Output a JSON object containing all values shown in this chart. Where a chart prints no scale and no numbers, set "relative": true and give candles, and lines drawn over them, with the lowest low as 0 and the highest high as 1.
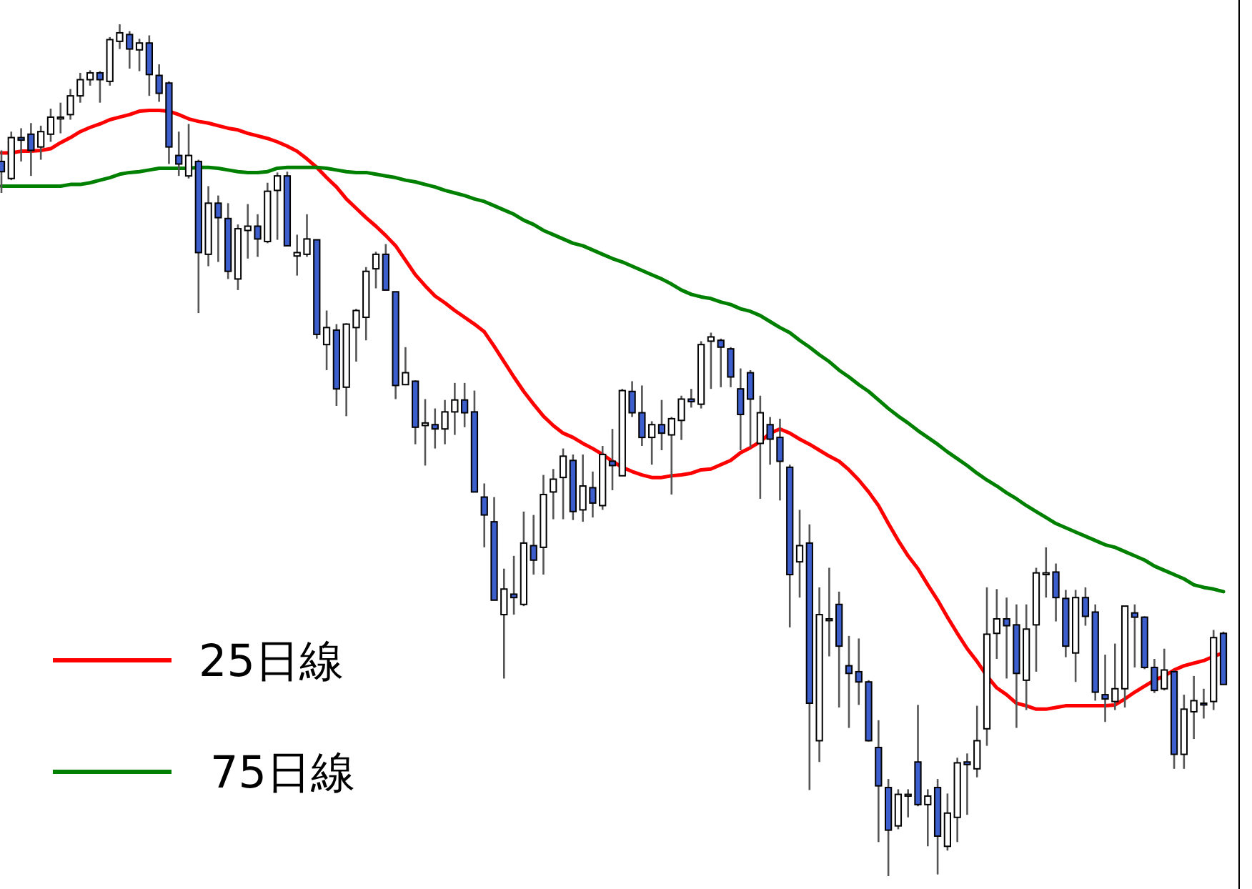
{
  "chart_data": {
    "type": "candlestick",
    "relative": true,
    "legend": "bottom left",
    "categories": [
      null,
      null,
      null,
      null,
      null,
      null,
      null,
      null,
      null,
      null,
      null,
      null,
      null,
      null,
      null,
      null,
      null,
      null,
      null,
      null,
      null,
      null,
      null,
      null,
      null,
      null,
      null,
      null,
      null,
      null,
      null,
      null,
      null,
      null,
      null,
      null,
      null,
      null,
      null,
      null,
      null,
      null,
      null,
      null,
      null,
      null,
      null,
      null,
      null,
      null,
      null,
      null,
      null,
      null,
      null,
      null,
      null,
      null,
      null,
      null,
      null,
      null,
      null,
      null,
      null,
      null,
      null,
      null,
      null,
      null,
      null,
      null,
      null,
      null,
      null,
      null,
      null,
      null,
      null,
      null,
      null,
      null,
      null,
      null,
      null,
      null,
      null,
      null,
      null,
      null,
      null,
      null,
      null,
      null,
      null,
      null,
      null,
      null,
      null,
      null,
      null,
      null,
      null,
      null,
      null,
      null,
      null,
      null,
      null,
      null,
      null,
      null,
      null,
      null,
      null,
      null,
      null,
      null,
      null,
      null,
      null,
      null,
      null,
      null,
      null
    ],
    "ohlc": [
      [
        0.839,
        0.852,
        0.802,
        0.827
      ],
      [
        0.819,
        0.874,
        0.817,
        0.867
      ],
      [
        0.867,
        0.878,
        0.839,
        0.864
      ],
      [
        0.871,
        0.884,
        0.822,
        0.852
      ],
      [
        0.856,
        0.881,
        0.841,
        0.874
      ],
      [
        0.871,
        0.901,
        0.862,
        0.891
      ],
      [
        0.889,
        0.908,
        0.872,
        0.891
      ],
      [
        0.894,
        0.924,
        0.888,
        0.916
      ],
      [
        0.916,
        0.943,
        0.908,
        0.935
      ],
      [
        0.935,
        0.946,
        0.928,
        0.943
      ],
      [
        0.943,
        0.945,
        0.908,
        0.935
      ],
      [
        0.933,
        0.985,
        0.928,
        0.982
      ],
      [
        0.98,
        1,
        0.971,
        0.99
      ],
      [
        0.988,
        0.992,
        0.948,
        0.971
      ],
      [
        0.97,
        0.983,
        0.945,
        0.978
      ],
      [
        0.978,
        0.987,
        0.916,
        0.941
      ],
      [
        0.94,
        0.953,
        0.909,
        0.919
      ],
      [
        0.931,
        0.933,
        0.836,
        0.856
      ],
      [
        0.846,
        0.874,
        0.822,
        0.836
      ],
      [
        0.822,
        0.883,
        0.819,
        0.846
      ],
      [
        0.839,
        0.841,
        0.661,
        0.732
      ],
      [
        0.73,
        0.81,
        0.716,
        0.79
      ],
      [
        0.79,
        0.799,
        0.721,
        0.773
      ],
      [
        0.772,
        0.79,
        0.701,
        0.71
      ],
      [
        0.701,
        0.765,
        0.688,
        0.76
      ],
      [
        0.758,
        0.789,
        0.725,
        0.763
      ],
      [
        0.763,
        0.777,
        0.727,
        0.748
      ],
      [
        0.745,
        0.814,
        0.743,
        0.804
      ],
      [
        0.805,
        0.826,
        0.747,
        0.822
      ],
      [
        0.822,
        0.827,
        0.74,
        0.74
      ],
      [
        0.728,
        0.753,
        0.705,
        0.732
      ],
      [
        0.73,
        0.777,
        0.727,
        0.748
      ],
      [
        0.747,
        0.747,
        0.631,
        0.636
      ],
      [
        0.624,
        0.664,
        0.594,
        0.644
      ],
      [
        0.641,
        0.648,
        0.552,
        0.572
      ],
      [
        0.574,
        0.649,
        0.54,
        0.648
      ],
      [
        0.644,
        0.666,
        0.604,
        0.664
      ],
      [
        0.656,
        0.715,
        0.629,
        0.71
      ],
      [
        0.713,
        0.733,
        0.69,
        0.73
      ],
      [
        0.73,
        0.742,
        0.688,
        0.688
      ],
      [
        0.686,
        0.686,
        0.56,
        0.576
      ],
      [
        0.577,
        0.621,
        0.577,
        0.591
      ],
      [
        0.581,
        0.582,
        0.507,
        0.527
      ],
      [
        0.529,
        0.56,
        0.482,
        0.532
      ],
      [
        0.53,
        0.549,
        0.502,
        0.525
      ],
      [
        0.525,
        0.559,
        0.507,
        0.545
      ],
      [
        0.545,
        0.579,
        0.518,
        0.559
      ],
      [
        0.559,
        0.579,
        0.527,
        0.544
      ],
      [
        0.545,
        0.57,
        0.451,
        0.451
      ],
      [
        0.445,
        0.461,
        0.386,
        0.424
      ],
      [
        0.416,
        0.445,
        0.324,
        0.324
      ],
      [
        0.307,
        0.361,
        0.232,
        0.337
      ],
      [
        0.331,
        0.376,
        0.307,
        0.327
      ],
      [
        0.319,
        0.428,
        0.317,
        0.391
      ],
      [
        0.388,
        0.424,
        0.354,
        0.371
      ],
      [
        0.386,
        0.471,
        0.354,
        0.448
      ],
      [
        0.451,
        0.478,
        0.419,
        0.466
      ],
      [
        0.468,
        0.502,
        0.419,
        0.493
      ],
      [
        0.488,
        0.495,
        0.418,
        0.428
      ],
      [
        0.43,
        0.495,
        0.416,
        0.458
      ],
      [
        0.456,
        0.475,
        0.421,
        0.438
      ],
      [
        0.435,
        0.505,
        0.43,
        0.495
      ],
      [
        0.487,
        0.525,
        0.453,
        0.482
      ],
      [
        0.47,
        0.572,
        0.47,
        0.57
      ],
      [
        0.569,
        0.581,
        0.539,
        0.544
      ],
      [
        0.544,
        0.576,
        0.505,
        0.515
      ],
      [
        0.515,
        0.534,
        0.483,
        0.53
      ],
      [
        0.53,
        0.559,
        0.5,
        0.52
      ],
      [
        0.518,
        0.539,
        0.448,
        0.537
      ],
      [
        0.535,
        0.564,
        0.512,
        0.56
      ],
      [
        0.56,
        0.572,
        0.55,
        0.557
      ],
      [
        0.554,
        0.628,
        0.549,
        0.624
      ],
      [
        0.628,
        0.638,
        0.572,
        0.633
      ],
      [
        0.629,
        0.631,
        0.574,
        0.621
      ],
      [
        0.619,
        0.621,
        0.574,
        0.586
      ],
      [
        0.572,
        0.596,
        0.5,
        0.542
      ],
      [
        0.591,
        0.594,
        0.503,
        0.56
      ],
      [
        0.508,
        0.564,
        0.443,
        0.544
      ],
      [
        0.53,
        0.539,
        0.483,
        0.513
      ],
      [
        0.515,
        0.537,
        0.441,
        0.487
      ],
      [
        0.48,
        0.483,
        0.292,
        0.354
      ],
      [
        0.369,
        0.43,
        0.327,
        0.388
      ],
      [
        0.391,
        0.413,
        0.101,
        0.203
      ],
      [
        0.159,
        0.339,
        0.134,
        0.307
      ],
      [
        0.3,
        0.362,
        0.258,
        0.302
      ],
      [
        0.319,
        0.334,
        0.198,
        0.27
      ],
      [
        0.247,
        0.282,
        0.174,
        0.238
      ],
      [
        0.24,
        0.279,
        0.201,
        0.228
      ],
      [
        0.228,
        0.23,
        0.158,
        0.159
      ],
      [
        0.151,
        0.183,
        0.04,
        0.106
      ],
      [
        0.104,
        0.114,
        0,
        0.054
      ],
      [
        0.059,
        0.102,
        0.055,
        0.096
      ],
      [
        0.094,
        0.102,
        0.069,
        0.096
      ],
      [
        0.134,
        0.201,
        0.082,
        0.084
      ],
      [
        0.084,
        0.102,
        0.035,
        0.094
      ],
      [
        0.104,
        0.114,
        0.002,
        0.047
      ],
      [
        0.035,
        0.097,
        0.03,
        0.074
      ],
      [
        0.069,
        0.139,
        0.04,
        0.133
      ],
      [
        0.134,
        0.144,
        0.072,
        0.131
      ],
      [
        0.126,
        0.2,
        0.116,
        0.159
      ],
      [
        0.173,
        0.339,
        0.153,
        0.284
      ],
      [
        0.285,
        0.337,
        0.255,
        0.302
      ],
      [
        0.302,
        0.327,
        0.232,
        0.294
      ],
      [
        0.295,
        0.319,
        0.174,
        0.238
      ],
      [
        0.23,
        0.319,
        0.195,
        0.29
      ],
      [
        0.295,
        0.362,
        0.24,
        0.356
      ],
      [
        0.354,
        0.386,
        0.327,
        0.356
      ],
      [
        0.357,
        0.367,
        0.299,
        0.327
      ],
      [
        0.326,
        0.336,
        0.257,
        0.27
      ],
      [
        0.262,
        0.336,
        0.228,
        0.327
      ],
      [
        0.327,
        0.339,
        0.294,
        0.305
      ],
      [
        0.31,
        0.319,
        0.206,
        0.216
      ],
      [
        0.213,
        0.26,
        0.181,
        0.208
      ],
      [
        0.205,
        0.273,
        0.195,
        0.22
      ],
      [
        0.22,
        0.317,
        0.198,
        0.317
      ],
      [
        0.309,
        0.319,
        0.245,
        0.304
      ],
      [
        0.304,
        0.305,
        0.243,
        0.245
      ],
      [
        0.245,
        0.255,
        0.215,
        0.218
      ],
      [
        0.22,
        0.267,
        0.218,
        0.242
      ],
      [
        0.24,
        0.242,
        0.126,
        0.143
      ],
      [
        0.143,
        0.213,
        0.126,
        0.196
      ],
      [
        0.193,
        0.235,
        0.161,
        0.206
      ],
      [
        0.203,
        0.22,
        0.185,
        0.201
      ],
      [
        0.205,
        0.289,
        0.195,
        0.28
      ],
      [
        0.285,
        0.287,
        0.225,
        0.225
      ]
    ],
    "colors": [
      "#3c5fcd",
      "#ffffff",
      "#3c5fcd",
      "#3c5fcd",
      "#ffffff",
      "#ffffff",
      "#ffffff",
      "#ffffff",
      "#ffffff",
      "#ffffff",
      "#3c5fcd",
      "#ffffff",
      "#ffffff",
      "#3c5fcd",
      "#ffffff",
      "#3c5fcd",
      "#3c5fcd",
      "#3c5fcd",
      "#3c5fcd",
      "#ffffff",
      "#3c5fcd",
      "#ffffff",
      "#3c5fcd",
      "#3c5fcd",
      "#ffffff",
      "#ffffff",
      "#3c5fcd",
      "#ffffff",
      "#ffffff",
      "#3c5fcd",
      "#ffffff",
      "#ffffff",
      "#3c5fcd",
      "#ffffff",
      "#3c5fcd",
      "#ffffff",
      "#ffffff",
      "#ffffff",
      "#ffffff",
      "#3c5fcd",
      "#3c5fcd",
      "#ffffff",
      "#3c5fcd",
      "#ffffff",
      "#3c5fcd",
      "#ffffff",
      "#ffffff",
      "#3c5fcd",
      "#3c5fcd",
      "#3c5fcd",
      "#3c5fcd",
      "#ffffff",
      "#3c5fcd",
      "#ffffff",
      "#3c5fcd",
      "#ffffff",
      "#ffffff",
      "#ffffff",
      "#3c5fcd",
      "#ffffff",
      "#3c5fcd",
      "#ffffff",
      "#3c5fcd",
      "#ffffff",
      "#3c5fcd",
      "#3c5fcd",
      "#ffffff",
      "#3c5fcd",
      "#ffffff",
      "#ffffff",
      "#3c5fcd",
      "#ffffff",
      "#ffffff",
      "#3c5fcd",
      "#3c5fcd",
      "#3c5fcd",
      "#3c5fcd",
      "#ffffff",
      "#3c5fcd",
      "#3c5fcd",
      "#3c5fcd",
      "#ffffff",
      "#3c5fcd",
      "#ffffff",
      "#ffffff",
      "#3c5fcd",
      "#3c5fcd",
      "#3c5fcd",
      "#3c5fcd",
      "#3c5fcd",
      "#3c5fcd",
      "#ffffff",
      "#ffffff",
      "#3c5fcd",
      "#ffffff",
      "#3c5fcd",
      "#ffffff",
      "#ffffff",
      "#3c5fcd",
      "#ffffff",
      "#ffffff",
      "#ffffff",
      "#3c5fcd",
      "#3c5fcd",
      "#ffffff",
      "#ffffff",
      "#ffffff",
      "#3c5fcd",
      "#3c5fcd",
      "#ffffff",
      "#3c5fcd",
      "#3c5fcd",
      "#3c5fcd",
      "#ffffff",
      "#ffffff",
      "#3c5fcd",
      "#3c5fcd",
      "#3c5fcd",
      "#ffffff",
      "#3c5fcd",
      "#ffffff",
      "#ffffff",
      "#3c5fcd",
      "#ffffff",
      "#3c5fcd"
    ],
    "series": [
      {
        "name": "25日線",
        "type": "line",
        "color": "#ff0000",
        "values": [
          0.849,
          0.849,
          0.851,
          0.851,
          0.852,
          0.854,
          0.861,
          0.867,
          0.874,
          0.879,
          0.883,
          0.888,
          0.891,
          0.894,
          0.898,
          0.899,
          0.899,
          0.898,
          0.894,
          0.889,
          0.886,
          0.884,
          0.881,
          0.878,
          0.876,
          0.872,
          0.869,
          0.866,
          0.862,
          0.857,
          0.851,
          0.842,
          0.832,
          0.82,
          0.809,
          0.795,
          0.784,
          0.773,
          0.763,
          0.752,
          0.74,
          0.723,
          0.706,
          0.693,
          0.681,
          0.673,
          0.664,
          0.656,
          0.648,
          0.639,
          0.622,
          0.604,
          0.586,
          0.569,
          0.554,
          0.54,
          0.529,
          0.52,
          0.515,
          0.508,
          0.502,
          0.495,
          0.487,
          0.48,
          0.475,
          0.471,
          0.468,
          0.468,
          0.47,
          0.471,
          0.473,
          0.477,
          0.478,
          0.483,
          0.488,
          0.497,
          0.503,
          0.51,
          0.52,
          0.525,
          0.52,
          0.513,
          0.507,
          0.5,
          0.493,
          0.487,
          0.477,
          0.465,
          0.451,
          0.435,
          0.414,
          0.394,
          0.376,
          0.361,
          0.342,
          0.324,
          0.304,
          0.285,
          0.267,
          0.252,
          0.235,
          0.221,
          0.213,
          0.203,
          0.2,
          0.196,
          0.196,
          0.198,
          0.2,
          0.2,
          0.2,
          0.2,
          0.2,
          0.201,
          0.208,
          0.216,
          0.223,
          0.23,
          0.235,
          0.242,
          0.247,
          0.25,
          0.253,
          0.258,
          0.262
        ]
      },
      {
        "name": "75日線",
        "type": "line",
        "color": "#008000",
        "values": [
          0.81,
          0.81,
          0.81,
          0.81,
          0.81,
          0.81,
          0.81,
          0.812,
          0.812,
          0.814,
          0.817,
          0.82,
          0.824,
          0.826,
          0.827,
          0.829,
          0.831,
          0.831,
          0.831,
          0.831,
          0.832,
          0.832,
          0.831,
          0.829,
          0.827,
          0.826,
          0.826,
          0.827,
          0.831,
          0.832,
          0.832,
          0.832,
          0.832,
          0.831,
          0.829,
          0.827,
          0.826,
          0.826,
          0.824,
          0.822,
          0.82,
          0.817,
          0.815,
          0.812,
          0.809,
          0.805,
          0.802,
          0.799,
          0.795,
          0.792,
          0.787,
          0.782,
          0.777,
          0.77,
          0.765,
          0.758,
          0.753,
          0.748,
          0.743,
          0.74,
          0.735,
          0.73,
          0.725,
          0.721,
          0.716,
          0.711,
          0.706,
          0.701,
          0.695,
          0.688,
          0.683,
          0.68,
          0.678,
          0.674,
          0.671,
          0.666,
          0.663,
          0.658,
          0.651,
          0.644,
          0.638,
          0.629,
          0.621,
          0.612,
          0.604,
          0.594,
          0.586,
          0.577,
          0.569,
          0.559,
          0.549,
          0.54,
          0.532,
          0.523,
          0.515,
          0.507,
          0.498,
          0.49,
          0.482,
          0.473,
          0.465,
          0.458,
          0.45,
          0.443,
          0.435,
          0.428,
          0.421,
          0.414,
          0.409,
          0.404,
          0.399,
          0.394,
          0.389,
          0.386,
          0.381,
          0.376,
          0.371,
          0.364,
          0.359,
          0.354,
          0.349,
          0.342,
          0.339,
          0.337,
          0.334
        ]
      }
    ]
  }
}
